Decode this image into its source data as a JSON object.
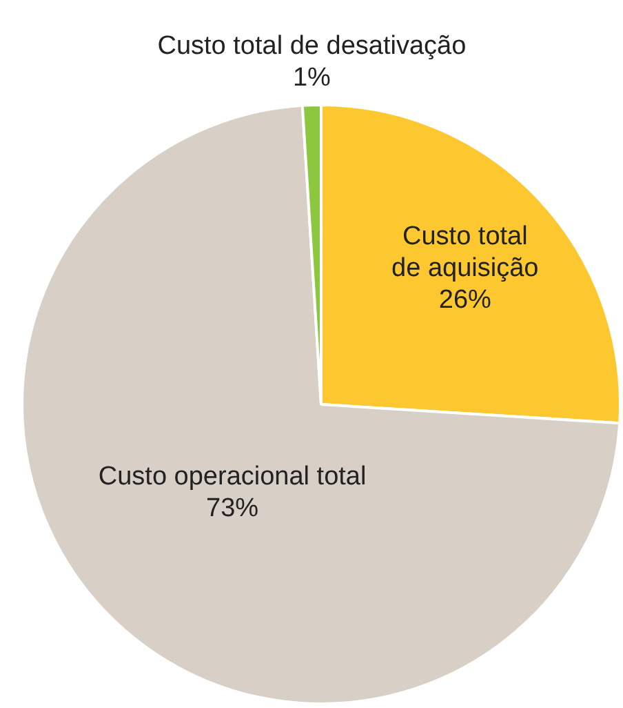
{
  "chart_data": {
    "type": "pie",
    "categories": [
      "Custo total de aquisição",
      "Custo operacional total",
      "Custo total de desativação"
    ],
    "values": [
      26,
      73,
      1
    ],
    "value_labels": [
      "26%",
      "73%",
      "1%"
    ],
    "colors": [
      "#fdc82f",
      "#d8cfc6",
      "#8dc63f"
    ],
    "legend": false
  }
}
